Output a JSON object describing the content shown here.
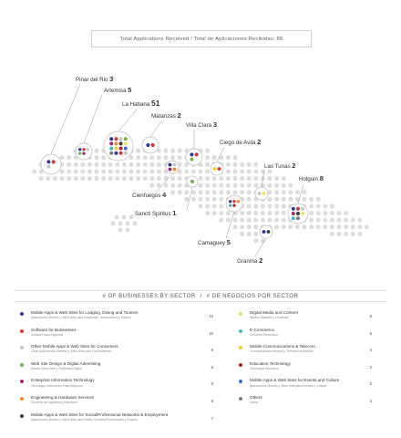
{
  "header": {
    "banner": "Total Applications Received / Total de Aplicaciones Recibidas: 88"
  },
  "colors": {
    "background": "#ffffff",
    "map_dot": "#dcdcdc",
    "ring": "#bdbdbd",
    "callout_line": "#9a9a9a"
  },
  "chart_data": [
    {
      "type": "dot map",
      "title": "",
      "provinces": [
        {
          "name": "Pinar del Rio",
          "value": 3
        },
        {
          "name": "Artemisa",
          "value": 5
        },
        {
          "name": "La Habana",
          "value": 51
        },
        {
          "name": "Matanzas",
          "value": 2
        },
        {
          "name": "Villa Clara",
          "value": 3
        },
        {
          "name": "Cienfuegos",
          "value": 4
        },
        {
          "name": "Sancti Spiritus",
          "value": 1
        },
        {
          "name": "Ciego de Avila",
          "value": 2
        },
        {
          "name": "Camaguey",
          "value": 5
        },
        {
          "name": "Las Tunas",
          "value": 2
        },
        {
          "name": "Holguin",
          "value": 8
        },
        {
          "name": "Granma",
          "value": 2
        }
      ]
    },
    {
      "type": "table",
      "title": "# OF BUSINESSES BY SECTOR",
      "title_es": "# DE NEGOCIOS POR SECTOR",
      "sectors": [
        {
          "en": "Mobile Apps & Web Sites for Lodging, Dining and Tourism",
          "es": "Aplicaciones Móviles y Sitios Web para Hospedaje, Gastronomía y Turismo",
          "count": 13,
          "color": "#2a3590"
        },
        {
          "en": "Software for Businesses",
          "es": "Software para Negocios",
          "count": 10,
          "color": "#d8332d"
        },
        {
          "en": "Other Mobile Apps & Web Sites for Consumers",
          "es": "Otras Aplicaciones Móviles y Sitios Web para Consumidores",
          "count": 9,
          "color": "#c4c4c4"
        },
        {
          "en": "Web Site Design & Digital Advertising",
          "es": "Diseño Sitios Web y Publicidad Digital",
          "count": 8,
          "color": "#74b344"
        },
        {
          "en": "Enterprise Information Technology",
          "es": "Tecnología Información Para Negocios",
          "count": 8,
          "color": "#a02a6e"
        },
        {
          "en": "Engineering & Hardware Services",
          "es": "Servicios de Ingeniería y Hardware",
          "count": 8,
          "color": "#ef8a2e"
        },
        {
          "en": "Mobile Apps & Web Sites for Social/Professional Networks & Employment",
          "es": "Aplicaciones Móviles y Sitios Web para Redes Sociales/Profesionales y Empleo",
          "count": 7,
          "color": "#3a3a3a"
        },
        {
          "en": "Digital Media and Content",
          "es": "Medios Digitales y Contenido",
          "count": 6,
          "color": "#e8e36a"
        },
        {
          "en": "E-Commerce",
          "es": "Comercio Electrónico",
          "count": 5,
          "color": "#46b7c0"
        },
        {
          "en": "Mobile Communications & Telecom",
          "es": "Comunicaciones Móviles y Telecomunicaciones",
          "count": 4,
          "color": "#f2cc2b"
        },
        {
          "en": "Education Technology",
          "es": "Tecnología Educativa",
          "count": 2,
          "color": "#b0242a"
        },
        {
          "en": "Mobile Apps & Web Sites for Events and Culture",
          "es": "Aplicaciones Móviles y Sitios Web para Eventos y Cultura",
          "count": 2,
          "color": "#3a6fc4"
        },
        {
          "en": "Others",
          "es": "Varios",
          "count": 4,
          "color": "#7a7a7a"
        }
      ]
    }
  ]
}
